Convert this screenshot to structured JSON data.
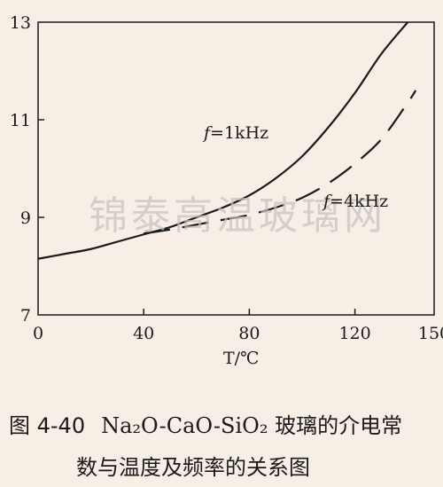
{
  "chart_data": {
    "type": "line",
    "xlabel": "T/℃",
    "xlim": [
      0,
      150
    ],
    "ylim": [
      7,
      13
    ],
    "x_ticks": [
      "0",
      "40",
      "80",
      "120",
      "150"
    ],
    "y_ticks": [
      "7",
      "9",
      "11",
      "13"
    ],
    "series": [
      {
        "name": "f=1kHz",
        "style": "solid",
        "x": [
          0,
          10,
          20,
          30,
          40,
          50,
          60,
          70,
          80,
          90,
          100,
          110,
          120,
          130,
          140
        ],
        "y": [
          8.15,
          8.25,
          8.35,
          8.5,
          8.65,
          8.8,
          9.0,
          9.2,
          9.45,
          9.8,
          10.25,
          10.85,
          11.55,
          12.35,
          13.0
        ]
      },
      {
        "name": "f=4kHz",
        "style": "dashed",
        "x": [
          40,
          50,
          60,
          70,
          80,
          90,
          100,
          110,
          120,
          130,
          140,
          143
        ],
        "y": [
          8.67,
          8.75,
          8.85,
          8.95,
          9.05,
          9.2,
          9.4,
          9.7,
          10.1,
          10.6,
          11.35,
          11.6
        ]
      }
    ]
  },
  "labels": {
    "curve1": "1kHz",
    "curve2": "4kHz",
    "f": "f",
    "eq": "=",
    "watermark": "锦泰高温玻璃网"
  },
  "caption": {
    "figure_number": "图 4-40",
    "line1": "Na₂O-CaO-SiO₂ 玻璃的介电常",
    "line2": "数与温度及频率的关系图"
  }
}
